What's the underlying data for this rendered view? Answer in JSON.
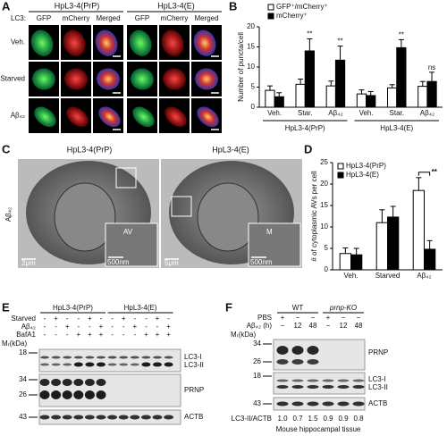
{
  "panel_letters": [
    "A",
    "B",
    "C",
    "D",
    "E",
    "F"
  ],
  "panel_a": {
    "groups": [
      "HpL3-4(PrP)",
      "HpL3-4(E)"
    ],
    "channel_prefix": "LC3:",
    "channels": [
      "GFP",
      "mCherry",
      "Merged",
      "GFP",
      "mCherry",
      "Merged"
    ],
    "rows": [
      "Veh.",
      "Starved",
      "Aβ₄₂"
    ]
  },
  "panel_c": {
    "groups": [
      "HpL3-4(PrP)",
      "HpL3-4(E)"
    ],
    "row": "Aβ₄₂",
    "inset_labels": [
      "AV",
      "M"
    ],
    "scale_bars": [
      "2μm",
      "500nm",
      "5μm",
      "500nm"
    ]
  },
  "panel_e": {
    "groups": [
      "HpL3-4(PrP)",
      "HpL3-4(E)"
    ],
    "treatments": [
      {
        "name": "Starved",
        "signs": [
          "-",
          "+",
          "-",
          "-",
          "+",
          "-",
          "-",
          "+",
          "-",
          "-",
          "+",
          "-"
        ]
      },
      {
        "name": "Aβ₄₂",
        "signs": [
          "-",
          "-",
          "+",
          "-",
          "-",
          "+",
          "-",
          "-",
          "+",
          "-",
          "-",
          "+"
        ]
      },
      {
        "name": "BafA1",
        "signs": [
          "-",
          "-",
          "-",
          "+",
          "+",
          "+",
          "-",
          "-",
          "-",
          "+",
          "+",
          "+"
        ]
      }
    ],
    "mr_label": "Mᵣ(kDa)",
    "markers": [
      "18",
      "34",
      "26",
      "43"
    ],
    "bands": [
      "LC3-I",
      "LC3-II",
      "PRNP",
      "ACTB"
    ]
  },
  "panel_f": {
    "genotypes": [
      "WT",
      "prnp-KO"
    ],
    "treatments": [
      {
        "name": "PBS",
        "signs": [
          "+",
          "−",
          "−",
          "+",
          "−",
          "−"
        ]
      },
      {
        "name": "Aβ₄₂ (h)",
        "signs": [
          "−",
          "12",
          "48",
          "−",
          "12",
          "48"
        ]
      }
    ],
    "mr_label": "Mᵣ(kDa)",
    "markers": [
      "34",
      "26",
      "18",
      "43"
    ],
    "bands": [
      "PRNP",
      "LC3-I",
      "LC3-II",
      "ACTB"
    ],
    "ratio_label": "LC3-II/ACTB",
    "ratios": [
      "1.0",
      "0.7",
      "1.5",
      "0.9",
      "0.9",
      "0.8"
    ],
    "tissue": "Mouse hippocampal tissue"
  },
  "chart_data": [
    {
      "type": "bar",
      "y_label": "Number of puncta/cell",
      "categories": [
        "Veh.",
        "Star.",
        "Aβ₄₂",
        "Veh.",
        "Star.",
        "Aβ₄₂"
      ],
      "group_labels": [
        "HpL3-4(PrP)",
        "HpL3-4(E)"
      ],
      "series": [
        {
          "name": "GFP⁺/mCherry⁺",
          "color": "#ffffff",
          "values": [
            4.2,
            5.7,
            5.3,
            3.3,
            4.8,
            5.2
          ],
          "errors": [
            1.1,
            1.3,
            1.2,
            1.0,
            0.8,
            1.2
          ]
        },
        {
          "name": "mCherry⁺",
          "color": "#000000",
          "values": [
            2.6,
            14.0,
            11.7,
            2.9,
            14.8,
            6.4
          ],
          "errors": [
            1.0,
            3.0,
            3.5,
            1.0,
            2.0,
            2.3
          ]
        }
      ],
      "annotations": [
        "**",
        "**",
        "**",
        "ns"
      ],
      "ylim": [
        0,
        20
      ],
      "yticks": [
        0,
        5,
        10,
        15,
        20
      ]
    },
    {
      "type": "bar",
      "y_label": "# of cytoplasmic AVs per cell",
      "categories": [
        "Veh.",
        "Starved",
        "Aβ₄₂"
      ],
      "series": [
        {
          "name": "HpL3-4(PrP)",
          "color": "#ffffff",
          "values": [
            3.8,
            11.0,
            18.5
          ],
          "errors": [
            1.3,
            3.0,
            3.0
          ]
        },
        {
          "name": "HpL3-4(E)",
          "color": "#000000",
          "values": [
            3.5,
            12.3,
            4.8
          ],
          "errors": [
            1.5,
            2.5,
            2.0
          ]
        }
      ],
      "annotations": [
        "**"
      ],
      "ylim": [
        0,
        25
      ],
      "yticks": [
        0,
        5,
        10,
        15,
        20,
        25
      ]
    }
  ]
}
